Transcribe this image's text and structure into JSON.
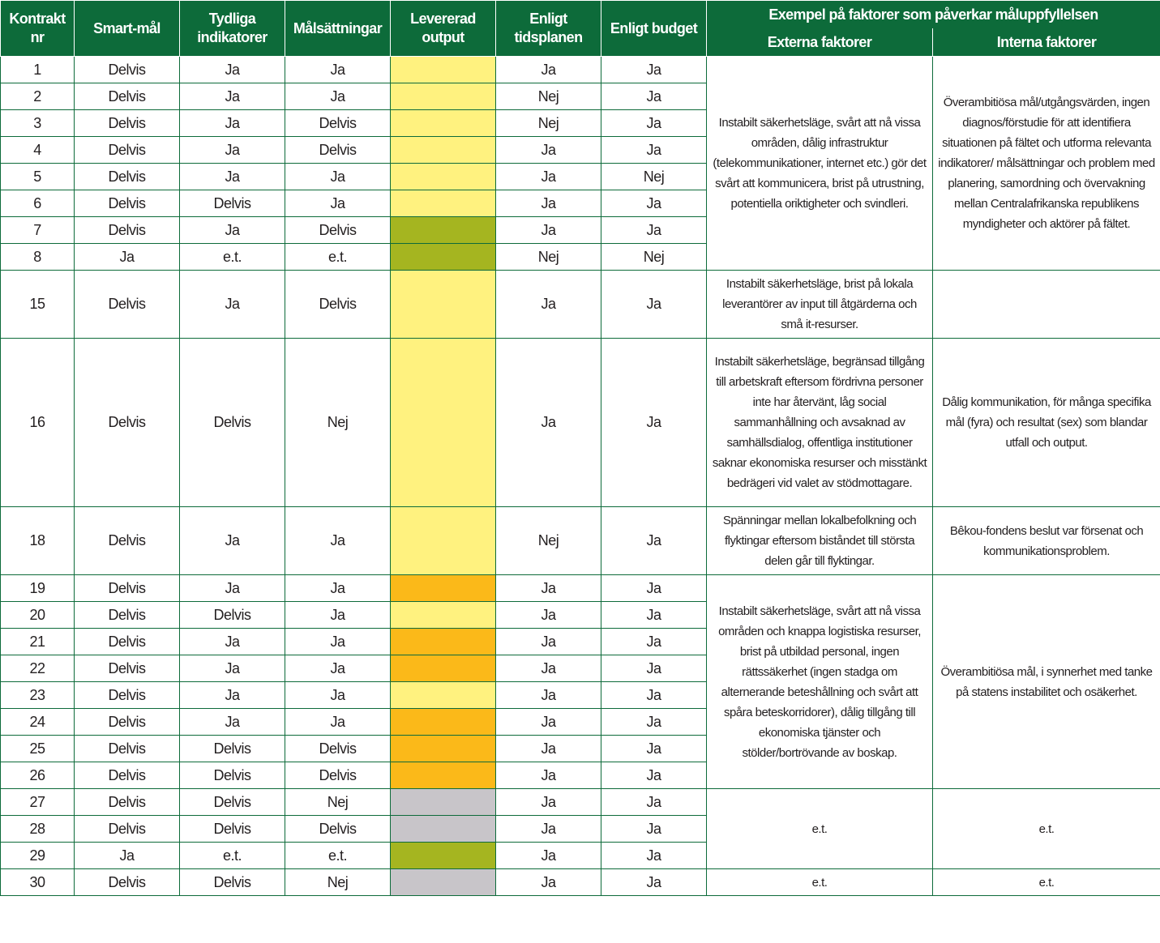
{
  "header": {
    "contract": "Kontrakt nr",
    "smart": "Smart-mål",
    "indicators": "Tydliga indikatorer",
    "targets": "Målsättningar",
    "output": "Levererad output",
    "schedule": "Enligt tidsplanen",
    "budget": "Enligt budget",
    "factors": "Exempel på faktorer som påverkar måluppfyllelsen",
    "external": "Externa faktorer",
    "internal": "Interna faktorer"
  },
  "colors": {
    "yellow": "#fff27f",
    "green": "#a5b520",
    "orange": "#fbb919",
    "gray": "#c8c5c9",
    "header": "#0d6b3a"
  },
  "rows": [
    {
      "nr": "1",
      "smart": "Delvis",
      "ind": "Ja",
      "mal": "Ja",
      "output": "yellow",
      "tid": "Ja",
      "budget": "Ja"
    },
    {
      "nr": "2",
      "smart": "Delvis",
      "ind": "Ja",
      "mal": "Ja",
      "output": "yellow",
      "tid": "Nej",
      "budget": "Ja"
    },
    {
      "nr": "3",
      "smart": "Delvis",
      "ind": "Ja",
      "mal": "Delvis",
      "output": "yellow",
      "tid": "Nej",
      "budget": "Ja"
    },
    {
      "nr": "4",
      "smart": "Delvis",
      "ind": "Ja",
      "mal": "Delvis",
      "output": "yellow",
      "tid": "Ja",
      "budget": "Ja"
    },
    {
      "nr": "5",
      "smart": "Delvis",
      "ind": "Ja",
      "mal": "Ja",
      "output": "yellow",
      "tid": "Ja",
      "budget": "Nej"
    },
    {
      "nr": "6",
      "smart": "Delvis",
      "ind": "Delvis",
      "mal": "Ja",
      "output": "yellow",
      "tid": "Ja",
      "budget": "Ja"
    },
    {
      "nr": "7",
      "smart": "Delvis",
      "ind": "Ja",
      "mal": "Delvis",
      "output": "green",
      "tid": "Ja",
      "budget": "Ja"
    },
    {
      "nr": "8",
      "smart": "Ja",
      "ind": "e.t.",
      "mal": "e.t.",
      "output": "green",
      "tid": "Nej",
      "budget": "Nej"
    },
    {
      "nr": "15",
      "smart": "Delvis",
      "ind": "Ja",
      "mal": "Delvis",
      "output": "yellow",
      "tid": "Ja",
      "budget": "Ja",
      "tall": "h86"
    },
    {
      "nr": "16",
      "smart": "Delvis",
      "ind": "Delvis",
      "mal": "Nej",
      "output": "yellow",
      "tid": "Ja",
      "budget": "Ja",
      "tall": "h210"
    },
    {
      "nr": "18",
      "smart": "Delvis",
      "ind": "Ja",
      "mal": "Ja",
      "output": "yellow",
      "tid": "Nej",
      "budget": "Ja",
      "tall": "h86"
    },
    {
      "nr": "19",
      "smart": "Delvis",
      "ind": "Ja",
      "mal": "Ja",
      "output": "orange",
      "tid": "Ja",
      "budget": "Ja"
    },
    {
      "nr": "20",
      "smart": "Delvis",
      "ind": "Delvis",
      "mal": "Ja",
      "output": "yellow",
      "tid": "Ja",
      "budget": "Ja"
    },
    {
      "nr": "21",
      "smart": "Delvis",
      "ind": "Ja",
      "mal": "Ja",
      "output": "orange",
      "tid": "Ja",
      "budget": "Ja"
    },
    {
      "nr": "22",
      "smart": "Delvis",
      "ind": "Ja",
      "mal": "Ja",
      "output": "orange",
      "tid": "Ja",
      "budget": "Ja"
    },
    {
      "nr": "23",
      "smart": "Delvis",
      "ind": "Ja",
      "mal": "Ja",
      "output": "yellow",
      "tid": "Ja",
      "budget": "Ja"
    },
    {
      "nr": "24",
      "smart": "Delvis",
      "ind": "Ja",
      "mal": "Ja",
      "output": "orange",
      "tid": "Ja",
      "budget": "Ja"
    },
    {
      "nr": "25",
      "smart": "Delvis",
      "ind": "Delvis",
      "mal": "Delvis",
      "output": "orange",
      "tid": "Ja",
      "budget": "Ja"
    },
    {
      "nr": "26",
      "smart": "Delvis",
      "ind": "Delvis",
      "mal": "Delvis",
      "output": "orange",
      "tid": "Ja",
      "budget": "Ja"
    },
    {
      "nr": "27",
      "smart": "Delvis",
      "ind": "Delvis",
      "mal": "Nej",
      "output": "gray",
      "tid": "Ja",
      "budget": "Ja"
    },
    {
      "nr": "28",
      "smart": "Delvis",
      "ind": "Delvis",
      "mal": "Delvis",
      "output": "gray",
      "tid": "Ja",
      "budget": "Ja"
    },
    {
      "nr": "29",
      "smart": "Ja",
      "ind": "e.t.",
      "mal": "e.t.",
      "output": "green",
      "tid": "Ja",
      "budget": "Ja"
    },
    {
      "nr": "30",
      "smart": "Delvis",
      "ind": "Delvis",
      "mal": "Nej",
      "output": "gray",
      "tid": "Ja",
      "budget": "Ja"
    }
  ],
  "factor_groups": [
    {
      "span": 8,
      "external": "Instabilt säkerhetsläge, svårt att nå vissa områden, dålig infrastruktur (telekommunikationer, internet etc.) gör det svårt att kommunicera, brist på utrustning, potentiella oriktigheter och svindleri.",
      "internal": "Överambitiösa mål/utgångsvärden, ingen diagnos/förstudie för att identifiera situationen på fältet och utforma relevanta indikatorer/ målsättningar och problem med planering, samordning och övervakning mellan Centralafrikanska republikens myndigheter och aktörer på fältet."
    },
    {
      "span": 1,
      "external": "Instabilt säkerhetsläge, brist på lokala leverantörer av input till åtgärderna och små it-resurser.",
      "internal": ""
    },
    {
      "span": 1,
      "external": "Instabilt säkerhetsläge, begränsad tillgång till arbetskraft eftersom fördrivna personer inte har återvänt, låg social sammanhållning och avsaknad av samhällsdialog, offentliga institutioner saknar ekonomiska resurser och misstänkt bedrägeri vid valet av stödmottagare.",
      "internal": "Dålig kommunikation, för många specifika mål (fyra) och resultat (sex) som blandar utfall och output."
    },
    {
      "span": 1,
      "external": "Spänningar mellan lokalbefolkning och flyktingar eftersom biståndet till största delen går till flyktingar.",
      "internal": "Bêkou-fondens beslut var försenat och kommunikationsproblem."
    },
    {
      "span": 8,
      "external": "Instabilt säkerhetsläge, svårt att nå vissa områden och knappa logistiska resurser, brist på utbildad personal, ingen rättssäkerhet (ingen stadga om alternerande beteshållning och svårt att spåra beteskorridorer), dålig tillgång till ekonomiska tjänster och stölder/bortrövande av boskap.",
      "internal": "Överambitiösa mål, i synnerhet med tanke på statens instabilitet och osäkerhet."
    },
    {
      "span": 3,
      "external": "e.t.",
      "internal": "e.t."
    },
    {
      "span": 1,
      "external": "e.t.",
      "internal": "e.t."
    }
  ]
}
